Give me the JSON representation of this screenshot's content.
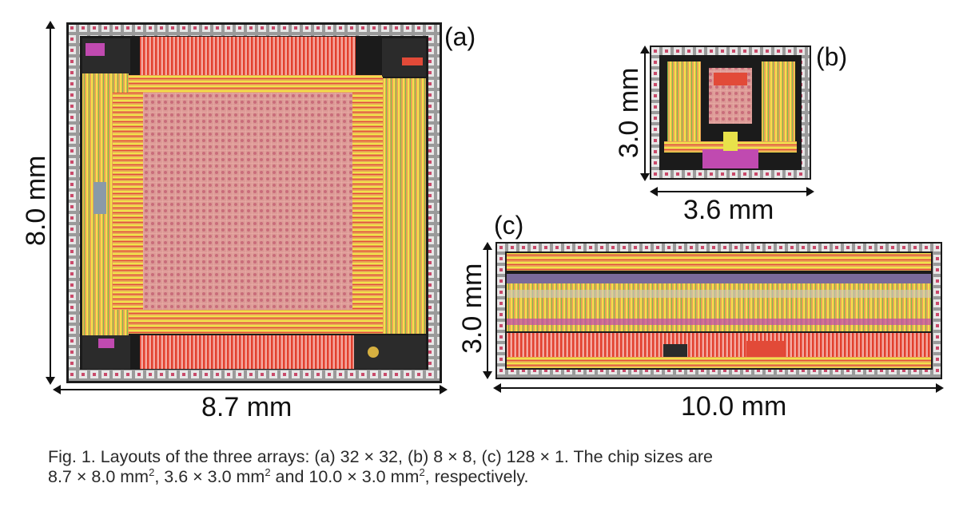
{
  "panels": {
    "a": {
      "letter": "(a)",
      "width_label": "8.7 mm",
      "height_label": "8.0 mm"
    },
    "b": {
      "letter": "(b)",
      "width_label": "3.6 mm",
      "height_label": "3.0 mm"
    },
    "c": {
      "letter": "(c)",
      "width_label": "10.0 mm",
      "height_label": "3.0 mm"
    }
  },
  "caption": {
    "line1": "Fig. 1. Layouts of the three arrays: (a) 32 × 32, (b) 8 × 8, (c) 128 × 1. The chip sizes are",
    "line2_part1": "8.7 × 8.0 mm",
    "line2_part2": ", 3.6 × 3.0 mm",
    "line2_part3": " and 10.0 × 3.0 mm",
    "line2_part4": ", respectively.",
    "superscript": "2"
  },
  "colors": {
    "pad_ring": "#b9b9b9",
    "die_border": "#1b1b1b",
    "array_core": "#d88a86",
    "red_block": "#e24a38",
    "yellow": "#e8e24a",
    "green": "#6fbf4a",
    "magenta": "#c04ab0",
    "orange": "#e8a040"
  }
}
